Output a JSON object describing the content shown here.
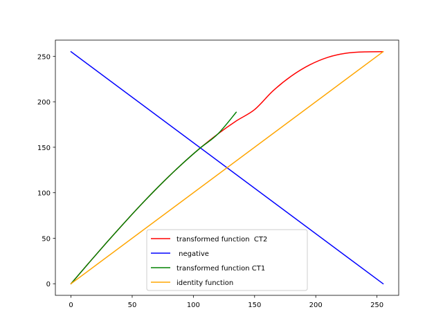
{
  "chart_data": {
    "type": "line",
    "title": "",
    "xlabel": "",
    "ylabel": "",
    "xlim": [
      -12.75,
      267.75
    ],
    "ylim": [
      -12.75,
      267.75
    ],
    "x_ticks": [
      0,
      50,
      100,
      150,
      200,
      250
    ],
    "y_ticks": [
      0,
      50,
      100,
      150,
      200,
      250
    ],
    "grid": false,
    "legend_position": "lower-center",
    "series": [
      {
        "name": "transformed function  CT2",
        "color": "#ff0000",
        "x": [
          0,
          15,
          30,
          45,
          60,
          75,
          90,
          105,
          120,
          135,
          150,
          165,
          180,
          195,
          210,
          225,
          240,
          255
        ],
        "y": [
          0,
          23.5,
          46.6,
          69.1,
          90.8,
          111.4,
          130.7,
          148.5,
          164.6,
          178.9,
          191.4,
          211.9,
          228.2,
          240.5,
          248.9,
          253.4,
          254.8,
          255
        ]
      },
      {
        "name": " negative",
        "color": "#0000ff",
        "x": [
          0,
          255
        ],
        "y": [
          255,
          0
        ]
      },
      {
        "name": "transformed function CT1",
        "color": "#008000",
        "x": [
          0,
          15,
          30,
          45,
          60,
          75,
          90,
          105,
          120,
          135
        ],
        "y": [
          0,
          23.5,
          46.6,
          69.1,
          90.8,
          111.4,
          130.7,
          148.5,
          164.6,
          188.5
        ]
      },
      {
        "name": "identity function",
        "color": "#ffa500",
        "x": [
          0,
          255
        ],
        "y": [
          0,
          255
        ]
      }
    ]
  }
}
